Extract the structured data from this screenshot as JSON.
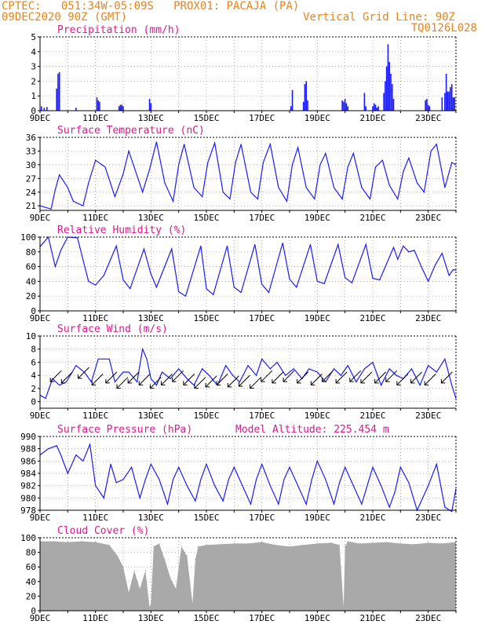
{
  "header": {
    "line1": "CPTEC:   051:34W-05:09S   PROX01: PACAJA (PA)",
    "line2_left": "09DEC2020 90Z (GMT)",
    "line2_right": "Vertical Grid Line: 90Z",
    "line3_right": "TQ0126L028",
    "colors": {
      "header": "#e8841a",
      "title": "#e0188c",
      "series": "#1a1aff",
      "cloud": "#a9a9a9",
      "arrow": "#000000"
    }
  },
  "chart_data": [
    {
      "type": "bar",
      "title": "Precipitation (mm/h)",
      "ylim": [
        0,
        5
      ],
      "yticks": [
        0,
        1,
        2,
        3,
        4,
        5
      ],
      "xticks": [
        "9DEC",
        "11DEC",
        "13DEC",
        "15DEC",
        "17DEC",
        "19DEC",
        "21DEC",
        "23DEC"
      ],
      "xlim": [
        9,
        24
      ],
      "x": [
        9.05,
        9.15,
        9.25,
        9.6,
        9.65,
        9.7,
        10.3,
        11.05,
        11.1,
        11.15,
        11.85,
        11.9,
        11.95,
        12.0,
        12.95,
        13.0,
        18.05,
        18.1,
        18.5,
        18.55,
        18.6,
        18.65,
        19.9,
        19.95,
        20.0,
        20.05,
        20.1,
        20.7,
        20.75,
        21.0,
        21.05,
        21.1,
        21.15,
        21.2,
        21.4,
        21.45,
        21.5,
        21.55,
        21.6,
        21.65,
        21.7,
        21.75,
        22.9,
        22.95,
        23.0,
        23.05,
        23.5,
        23.6,
        23.65,
        23.7,
        23.75,
        23.8,
        23.85,
        23.9,
        23.95
      ],
      "values": [
        0.3,
        0.2,
        0.25,
        1.5,
        2.5,
        2.6,
        0.2,
        0.9,
        0.7,
        0.6,
        0.3,
        0.4,
        0.4,
        0.3,
        0.8,
        0.5,
        0.3,
        1.4,
        0.6,
        1.8,
        2.0,
        0.7,
        0.7,
        0.6,
        0.8,
        0.5,
        0.3,
        1.2,
        0.3,
        0.3,
        0.5,
        0.4,
        0.2,
        0.3,
        1.2,
        2.0,
        3.0,
        4.5,
        3.3,
        2.5,
        1.8,
        0.8,
        0.7,
        0.8,
        0.4,
        0.3,
        0.9,
        1.2,
        2.5,
        1.3,
        1.3,
        1.6,
        1.8,
        0.9,
        0.9
      ]
    },
    {
      "type": "line",
      "title": "Surface Temperature (nC)",
      "ylim": [
        20,
        36
      ],
      "yticks": [
        21,
        24,
        27,
        30,
        33,
        36
      ],
      "xticks": [
        "9DEC",
        "11DEC",
        "13DEC",
        "15DEC",
        "17DEC",
        "19DEC",
        "21DEC",
        "23DEC"
      ],
      "xlim": [
        9,
        24
      ],
      "x": [
        9.0,
        9.4,
        9.55,
        9.7,
        10.0,
        10.2,
        10.55,
        10.75,
        11.0,
        11.35,
        11.7,
        12.0,
        12.2,
        12.7,
        12.95,
        13.2,
        13.5,
        13.8,
        14.0,
        14.2,
        14.55,
        14.85,
        15.05,
        15.3,
        15.6,
        15.85,
        16.05,
        16.25,
        16.6,
        16.85,
        17.05,
        17.3,
        17.6,
        17.9,
        18.1,
        18.3,
        18.6,
        18.9,
        19.1,
        19.3,
        19.6,
        19.9,
        20.1,
        20.3,
        20.6,
        20.9,
        21.1,
        21.35,
        21.6,
        21.9,
        22.1,
        22.3,
        22.6,
        22.85,
        23.1,
        23.3,
        23.6,
        23.85,
        24.0
      ],
      "values": [
        21.0,
        20.3,
        24.5,
        27.8,
        25.0,
        22.0,
        21.0,
        26.0,
        31.0,
        29.5,
        23.0,
        28.0,
        33.0,
        24.0,
        29.0,
        35.0,
        26.0,
        22.0,
        30.0,
        34.5,
        25.0,
        23.0,
        30.5,
        34.8,
        24.0,
        22.5,
        30.5,
        34.5,
        24.0,
        22.5,
        30.5,
        34.5,
        25.0,
        22.0,
        30.0,
        33.8,
        25.0,
        22.5,
        30.0,
        32.5,
        25.0,
        22.5,
        29.5,
        32.5,
        25.0,
        22.5,
        29.5,
        31.0,
        25.5,
        22.5,
        28.5,
        31.5,
        26.0,
        24.0,
        33.0,
        34.5,
        25.0,
        30.5,
        30.0
      ]
    },
    {
      "type": "line",
      "title": "Relative Humidity (%)",
      "ylim": [
        0,
        100
      ],
      "yticks": [
        0,
        20,
        40,
        60,
        80,
        100
      ],
      "xticks": [
        "9DEC",
        "11DEC",
        "13DEC",
        "15DEC",
        "17DEC",
        "19DEC",
        "21DEC",
        "23DEC"
      ],
      "xlim": [
        9,
        24
      ],
      "x": [
        9.0,
        9.3,
        9.55,
        9.75,
        10.0,
        10.35,
        10.6,
        10.75,
        11.0,
        11.3,
        11.75,
        12.0,
        12.25,
        12.75,
        13.0,
        13.2,
        13.75,
        14.0,
        14.25,
        14.8,
        15.0,
        15.25,
        15.75,
        16.0,
        16.25,
        16.75,
        17.0,
        17.25,
        17.75,
        18.0,
        18.25,
        18.75,
        19.0,
        19.25,
        19.75,
        20.0,
        20.25,
        20.75,
        21.0,
        21.25,
        21.75,
        21.9,
        22.1,
        22.3,
        22.5,
        22.75,
        23.0,
        23.25,
        23.5,
        23.75,
        23.9,
        24.0
      ],
      "values": [
        87.0,
        100.0,
        60.0,
        82.0,
        100.0,
        99.0,
        62.0,
        40.0,
        35.0,
        48.0,
        88.0,
        42.0,
        30.0,
        84.0,
        50.0,
        32.0,
        84.0,
        26.0,
        20.0,
        88.0,
        30.0,
        22.0,
        88.0,
        32.0,
        25.0,
        90.0,
        36.0,
        25.0,
        92.0,
        43.0,
        32.0,
        90.0,
        40.0,
        37.0,
        90.0,
        45.0,
        38.0,
        90.0,
        44.0,
        42.0,
        86.0,
        70.0,
        88.0,
        80.0,
        82.0,
        60.0,
        40.0,
        62.0,
        78.0,
        48.0,
        56.0,
        55.0
      ]
    },
    {
      "type": "line",
      "title": "Surface Wind (m/s)",
      "ylim": [
        -1,
        10
      ],
      "yticks": [
        0,
        2,
        4,
        6,
        8,
        10
      ],
      "xticks": [
        "9DEC",
        "11DEC",
        "13DEC",
        "15DEC",
        "17DEC",
        "19DEC",
        "21DEC",
        "23DEC"
      ],
      "xlim": [
        9,
        24
      ],
      "x": [
        9.0,
        9.2,
        9.45,
        9.7,
        9.95,
        10.3,
        10.6,
        10.85,
        11.1,
        11.5,
        11.7,
        12.0,
        12.2,
        12.5,
        12.7,
        12.85,
        13.0,
        13.2,
        13.4,
        13.7,
        14.0,
        14.3,
        14.55,
        14.85,
        15.1,
        15.4,
        15.7,
        15.95,
        16.2,
        16.5,
        16.8,
        17.0,
        17.3,
        17.55,
        17.85,
        18.15,
        18.45,
        18.7,
        19.0,
        19.3,
        19.6,
        19.85,
        20.1,
        20.4,
        20.7,
        21.0,
        21.3,
        21.6,
        21.85,
        22.1,
        22.4,
        22.7,
        23.0,
        23.3,
        23.6,
        23.85,
        24.0
      ],
      "values": [
        1.0,
        0.5,
        3.5,
        2.5,
        3.0,
        5.5,
        4.5,
        3.0,
        6.5,
        6.5,
        3.0,
        4.5,
        4.5,
        3.0,
        8.0,
        6.5,
        3.5,
        2.5,
        4.5,
        3.5,
        5.0,
        3.5,
        2.5,
        5.0,
        4.0,
        2.5,
        5.5,
        4.0,
        3.0,
        5.5,
        4.0,
        6.5,
        5.0,
        6.0,
        4.0,
        5.0,
        3.5,
        5.0,
        4.5,
        3.0,
        5.0,
        4.0,
        5.5,
        3.0,
        5.0,
        6.0,
        2.5,
        5.0,
        4.0,
        3.5,
        5.0,
        2.5,
        5.5,
        4.5,
        6.5,
        2.5,
        0.5
      ],
      "arrows": [
        {
          "x": 9.6,
          "y": 4.0
        },
        {
          "x": 10.0,
          "y": 3.8
        },
        {
          "x": 10.6,
          "y": 4.5
        },
        {
          "x": 11.1,
          "y": 3.5
        },
        {
          "x": 11.6,
          "y": 3.8
        },
        {
          "x": 12.0,
          "y": 3.0
        },
        {
          "x": 12.4,
          "y": 3.8
        },
        {
          "x": 12.8,
          "y": 3.5
        },
        {
          "x": 13.2,
          "y": 3.0
        },
        {
          "x": 13.6,
          "y": 3.5
        },
        {
          "x": 14.0,
          "y": 4.0
        },
        {
          "x": 14.4,
          "y": 3.5
        },
        {
          "x": 14.8,
          "y": 3.0
        },
        {
          "x": 15.2,
          "y": 3.2
        },
        {
          "x": 15.6,
          "y": 3.5
        },
        {
          "x": 16.0,
          "y": 3.2
        },
        {
          "x": 16.4,
          "y": 3.3
        },
        {
          "x": 16.8,
          "y": 3.0
        },
        {
          "x": 17.2,
          "y": 4.0
        },
        {
          "x": 17.6,
          "y": 3.8
        },
        {
          "x": 18.0,
          "y": 4.0
        },
        {
          "x": 18.5,
          "y": 3.8
        },
        {
          "x": 19.0,
          "y": 3.5
        },
        {
          "x": 19.4,
          "y": 4.0
        },
        {
          "x": 19.9,
          "y": 3.8
        },
        {
          "x": 20.4,
          "y": 4.0
        },
        {
          "x": 20.8,
          "y": 3.8
        },
        {
          "x": 21.3,
          "y": 3.8
        },
        {
          "x": 21.7,
          "y": 4.0
        },
        {
          "x": 22.1,
          "y": 3.5
        },
        {
          "x": 22.6,
          "y": 3.8
        },
        {
          "x": 23.1,
          "y": 3.5
        },
        {
          "x": 23.7,
          "y": 3.8
        }
      ]
    },
    {
      "type": "line",
      "title": "Surface Pressure (hPa)",
      "annotation": "Model Altitude: 225.454  m",
      "ylim": [
        978,
        990
      ],
      "yticks": [
        978,
        980,
        982,
        984,
        986,
        988,
        990
      ],
      "xticks": [
        "9DEC",
        "11DEC",
        "13DEC",
        "15DEC",
        "17DEC",
        "19DEC",
        "21DEC",
        "23DEC"
      ],
      "xlim": [
        9,
        24
      ],
      "x": [
        9.0,
        9.3,
        9.6,
        9.75,
        10.0,
        10.3,
        10.55,
        10.8,
        11.0,
        11.3,
        11.55,
        11.75,
        12.0,
        12.3,
        12.6,
        12.8,
        13.0,
        13.3,
        13.6,
        13.8,
        14.0,
        14.3,
        14.6,
        14.8,
        15.0,
        15.3,
        15.6,
        15.8,
        16.0,
        16.3,
        16.6,
        16.8,
        17.0,
        17.3,
        17.6,
        17.8,
        18.0,
        18.3,
        18.6,
        18.8,
        19.0,
        19.3,
        19.6,
        19.8,
        20.0,
        20.3,
        20.6,
        20.8,
        21.0,
        21.3,
        21.6,
        21.8,
        22.0,
        22.3,
        22.6,
        22.8,
        23.0,
        23.3,
        23.6,
        23.85,
        24.0
      ],
      "values": [
        987.0,
        988.0,
        988.5,
        987.0,
        984.0,
        987.0,
        986.0,
        988.7,
        982.0,
        980.0,
        985.5,
        982.5,
        983.0,
        985.0,
        980.0,
        983.0,
        985.5,
        983.0,
        979.0,
        983.0,
        985.0,
        982.0,
        979.5,
        983.0,
        985.5,
        982.0,
        979.5,
        983.0,
        985.0,
        982.0,
        979.0,
        983.0,
        985.5,
        982.0,
        979.0,
        983.0,
        985.0,
        982.0,
        979.0,
        983.0,
        986.0,
        983.0,
        979.0,
        982.5,
        985.0,
        982.0,
        979.0,
        982.0,
        985.0,
        982.0,
        978.5,
        981.0,
        985.0,
        982.5,
        978.0,
        980.0,
        982.0,
        985.5,
        978.5,
        977.8,
        981.5
      ]
    },
    {
      "type": "bar",
      "title": "Cloud Cover (%)",
      "ylim": [
        0,
        100
      ],
      "yticks": [
        0,
        20,
        40,
        60,
        80,
        100
      ],
      "xticks": [
        "9DEC",
        "11DEC",
        "13DEC",
        "15DEC",
        "17DEC",
        "19DEC",
        "21DEC",
        "23DEC"
      ],
      "xlim": [
        9,
        24
      ],
      "x": [
        9.0,
        9.5,
        10.0,
        10.5,
        11.0,
        11.5,
        11.8,
        12.0,
        12.2,
        12.4,
        12.6,
        12.8,
        12.95,
        13.0,
        13.1,
        13.3,
        13.5,
        13.7,
        13.9,
        14.1,
        14.3,
        14.5,
        14.6,
        14.7,
        15.0,
        15.5,
        16.0,
        16.5,
        17.0,
        17.5,
        18.0,
        18.5,
        19.0,
        19.5,
        19.8,
        19.95,
        20.0,
        20.1,
        20.5,
        21.0,
        21.5,
        22.0,
        22.5,
        23.0,
        23.5,
        24.0
      ],
      "values": [
        95,
        95,
        94,
        95,
        94,
        90,
        75,
        60,
        25,
        55,
        30,
        55,
        5,
        10,
        88,
        92,
        70,
        45,
        30,
        88,
        75,
        10,
        70,
        88,
        90,
        91,
        92,
        92,
        94,
        90,
        88,
        90,
        92,
        93,
        90,
        5,
        88,
        95,
        92,
        93,
        94,
        92,
        91,
        93,
        92,
        94
      ]
    }
  ]
}
